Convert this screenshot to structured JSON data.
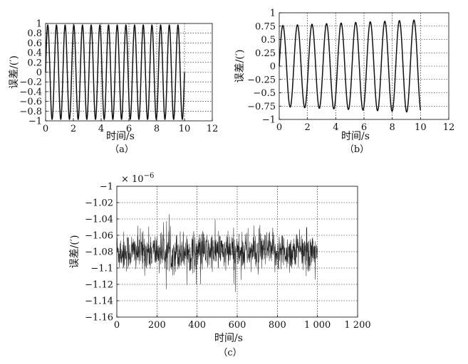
{
  "chart_data": [
    {
      "id": "a",
      "type": "line",
      "caption": "（a）",
      "xlabel": "时间/s",
      "ylabel": "误差/(′)",
      "xlim": [
        0,
        12
      ],
      "ylim": [
        -1,
        1
      ],
      "xticks": [
        "0",
        "2",
        "4",
        "6",
        "8",
        "10",
        "12"
      ],
      "yticks": [
        "−1",
        "−0.8",
        "−0.6",
        "−0.4",
        "−0.2",
        "0",
        "0.2",
        "0.4",
        "0.6",
        "0.8",
        "1"
      ],
      "xtick_values": [
        0,
        2,
        4,
        6,
        8,
        10,
        12
      ],
      "ytick_values": [
        -1,
        -0.8,
        -0.6,
        -0.4,
        -0.2,
        0,
        0.2,
        0.4,
        0.6,
        0.8,
        1
      ],
      "grid": true,
      "series": [
        {
          "signal": "sine",
          "amplitude": 0.97,
          "frequency_hz": 1.6,
          "phase_deg": 0,
          "offset": 0,
          "drift_per_s": 0,
          "noise_sd": 0,
          "x_range": [
            0,
            10
          ],
          "samples": 1000,
          "color": "#111111"
        }
      ]
    },
    {
      "id": "b",
      "type": "line",
      "caption": "（b）",
      "xlabel": "时间/s",
      "ylabel": "误差/(′)",
      "xlim": [
        0,
        12
      ],
      "ylim": [
        -1,
        1
      ],
      "xticks": [
        "0",
        "2",
        "4",
        "6",
        "8",
        "10",
        "12"
      ],
      "yticks": [
        "−1",
        "−0.75",
        "−0.5",
        "−0.25",
        "0",
        "0.25",
        "0.5",
        "0.75",
        "1"
      ],
      "xtick_values": [
        0,
        2,
        4,
        6,
        8,
        10,
        12
      ],
      "ytick_values": [
        -1,
        -0.75,
        -0.5,
        -0.25,
        0,
        0.25,
        0.5,
        0.75,
        1
      ],
      "grid": true,
      "series": [
        {
          "signal": "sine",
          "amplitude": 0.76,
          "frequency_hz": 0.97,
          "phase_deg": 0,
          "offset": 0,
          "drift_per_s": 0.011,
          "noise_sd": 0,
          "x_range": [
            0,
            10
          ],
          "samples": 1000,
          "color": "#111111"
        }
      ]
    },
    {
      "id": "c",
      "type": "line",
      "caption": "（c）",
      "xlabel": "时间/s",
      "ylabel": "误差/(′)",
      "y_multiplier": "× 10",
      "y_multiplier_exponent": "−6",
      "xlim": [
        0,
        1200
      ],
      "ylim": [
        -1.16,
        -1.0
      ],
      "xticks": [
        "0",
        "200",
        "400",
        "600",
        "800",
        "1 000",
        "1 200"
      ],
      "yticks": [
        "−1.16",
        "−1.14",
        "−1.12",
        "−1.1",
        "−1.08",
        "−1.06",
        "−1.04",
        "−1.02",
        "−1"
      ],
      "xtick_values": [
        0,
        200,
        400,
        600,
        800,
        1000,
        1200
      ],
      "ytick_values": [
        -1.16,
        -1.14,
        -1.12,
        -1.1,
        -1.08,
        -1.06,
        -1.04,
        -1.02,
        -1.0
      ],
      "grid": true,
      "series": [
        {
          "signal": "noise",
          "offset": -1.08,
          "noise_sd": 0.012,
          "amplitude": 0,
          "frequency_hz": 0,
          "phase_deg": 0,
          "drift_per_s": 0,
          "x_range": [
            0,
            1000
          ],
          "samples": 1000,
          "color": "#222222"
        }
      ]
    }
  ]
}
